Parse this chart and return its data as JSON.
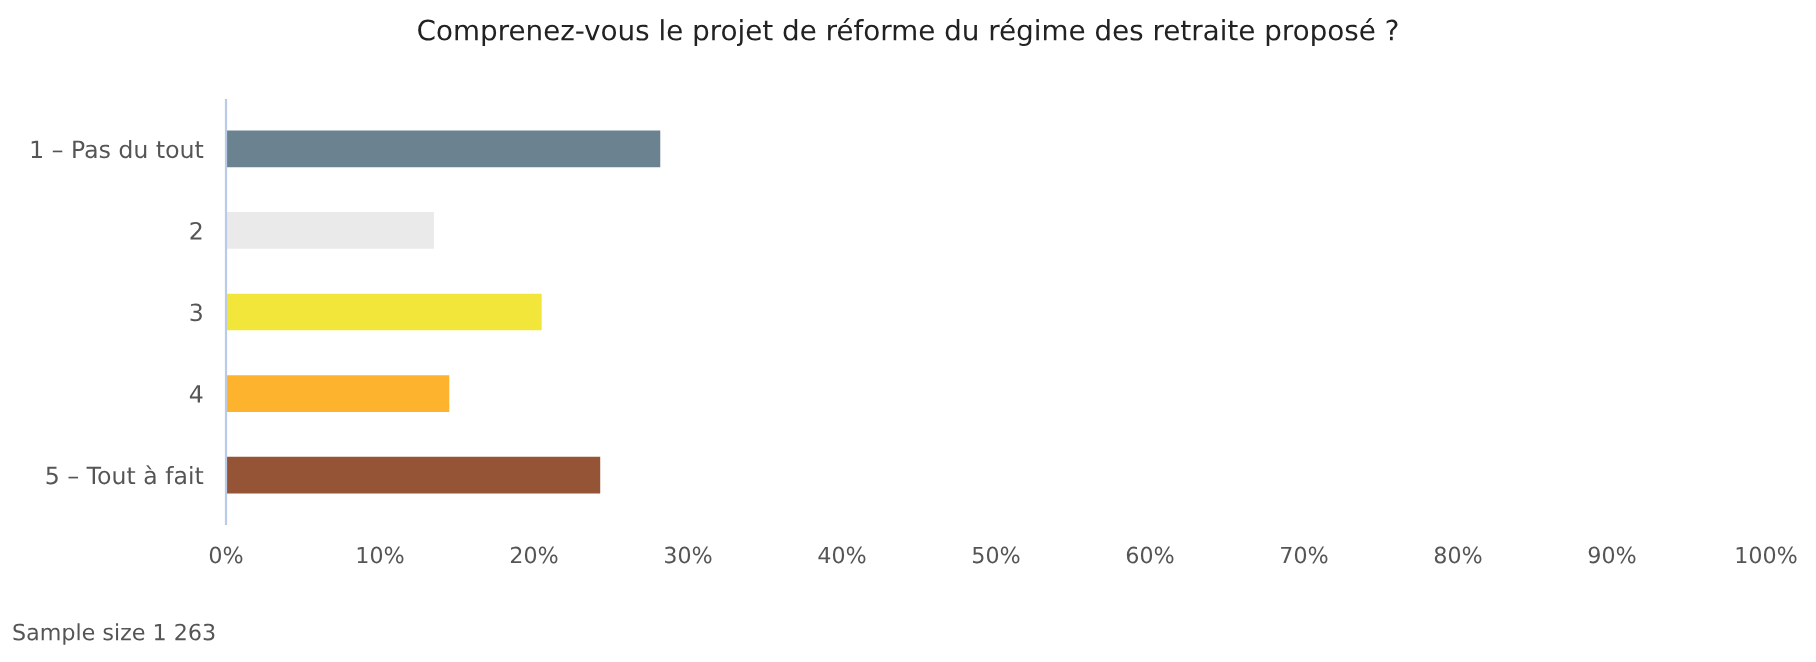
{
  "chart_data": {
    "type": "bar",
    "orientation": "horizontal",
    "title": "Comprenez-vous le projet de réforme du régime des retraite proposé ?",
    "categories": [
      "1 – Pas du tout",
      "2",
      "3",
      "4",
      "5 – Tout à fait"
    ],
    "values": [
      28.2,
      13.5,
      20.5,
      14.5,
      24.3
    ],
    "colors": [
      "#6b8391",
      "#eaeaea",
      "#f2e63a",
      "#fdb32e",
      "#955435"
    ],
    "xlim": [
      0,
      100
    ],
    "xticks": [
      {
        "value": 0,
        "label": "0%"
      },
      {
        "value": 10,
        "label": "10%"
      },
      {
        "value": 20,
        "label": "20%"
      },
      {
        "value": 30,
        "label": "30%"
      },
      {
        "value": 40,
        "label": "40%"
      },
      {
        "value": 50,
        "label": "50%"
      },
      {
        "value": 60,
        "label": "60%"
      },
      {
        "value": 70,
        "label": "70%"
      },
      {
        "value": 80,
        "label": "80%"
      },
      {
        "value": 90,
        "label": "90%"
      },
      {
        "value": 100,
        "label": "100%"
      }
    ],
    "grid": false,
    "annotations": [
      "Sample size 1 263"
    ]
  }
}
